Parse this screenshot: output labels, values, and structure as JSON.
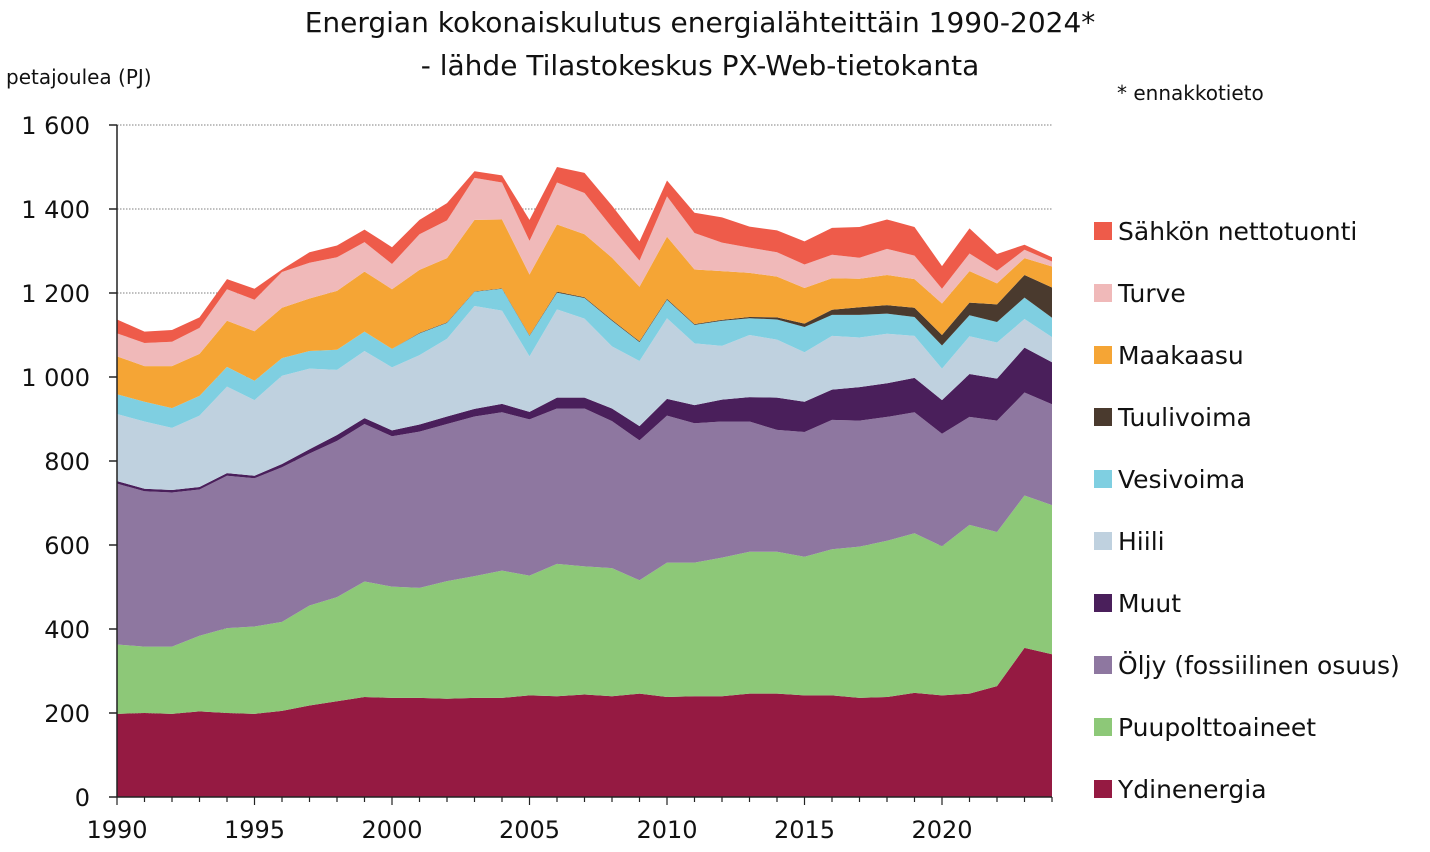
{
  "chart_data": {
    "type": "area",
    "stacked": true,
    "title": "Energian kokonaiskulutus energialähteittäin 1990-2024*",
    "subtitle": "- lähde Tilastokeskus PX-Web-tietokanta",
    "ylabel": "petajoulea (PJ)",
    "note": "* ennakkotieto",
    "xlabel": "",
    "ylim": [
      0,
      1600
    ],
    "yticks": [
      0,
      200,
      400,
      600,
      800,
      1000,
      1200,
      1400,
      1600
    ],
    "ytick_labels": [
      "0",
      "200",
      "400",
      "600",
      "800",
      "1 000",
      "1 200",
      "1 400",
      "1 600"
    ],
    "xlim": [
      1990,
      2024
    ],
    "xticks": [
      1990,
      1995,
      2000,
      2005,
      2010,
      2015,
      2020
    ],
    "xtick_labels": [
      "1990",
      "1995",
      "2000",
      "2005",
      "2010",
      "2015",
      "2020"
    ],
    "grid": "horizontal",
    "legend": "right",
    "x": [
      1990,
      1991,
      1992,
      1993,
      1994,
      1995,
      1996,
      1997,
      1998,
      1999,
      2000,
      2001,
      2002,
      2003,
      2004,
      2005,
      2006,
      2007,
      2008,
      2009,
      2010,
      2011,
      2012,
      2013,
      2014,
      2015,
      2016,
      2017,
      2018,
      2019,
      2020,
      2021,
      2022,
      2023,
      2024
    ],
    "series": [
      {
        "name": "Ydinenergia",
        "color": "#951a42",
        "values": [
          198,
          200,
          198,
          204,
          200,
          198,
          205,
          218,
          228,
          238,
          236,
          236,
          234,
          236,
          236,
          242,
          240,
          244,
          240,
          246,
          238,
          240,
          240,
          246,
          246,
          242,
          242,
          236,
          238,
          248,
          242,
          246,
          264,
          355,
          340
        ]
      },
      {
        "name": "Puupolttoaineet",
        "color": "#8dc878",
        "values": [
          165,
          158,
          160,
          180,
          202,
          208,
          212,
          238,
          248,
          275,
          265,
          262,
          280,
          290,
          303,
          285,
          315,
          305,
          305,
          270,
          320,
          318,
          330,
          338,
          338,
          330,
          348,
          360,
          372,
          380,
          355,
          402,
          367,
          363,
          355
        ]
      },
      {
        "name": "Öljy (fossiilinen osuus)",
        "color": "#8e77a0",
        "values": [
          383,
          370,
          367,
          348,
          363,
          353,
          368,
          362,
          372,
          375,
          358,
          372,
          374,
          380,
          377,
          372,
          370,
          376,
          350,
          333,
          350,
          332,
          324,
          310,
          290,
          297,
          308,
          300,
          295,
          288,
          268,
          257,
          265,
          245,
          240
        ]
      },
      {
        "name": "Muut",
        "color": "#4a1f5b",
        "values": [
          6,
          6,
          6,
          6,
          6,
          6,
          8,
          10,
          14,
          14,
          14,
          17,
          18,
          18,
          20,
          18,
          26,
          26,
          30,
          34,
          40,
          43,
          52,
          58,
          77,
          72,
          72,
          80,
          80,
          82,
          80,
          102,
          100,
          107,
          100
        ]
      },
      {
        "name": "Hiili",
        "color": "#bfd1df",
        "values": [
          160,
          160,
          148,
          170,
          206,
          180,
          210,
          192,
          155,
          160,
          150,
          165,
          185,
          245,
          222,
          132,
          210,
          188,
          148,
          155,
          192,
          147,
          128,
          148,
          138,
          118,
          128,
          118,
          118,
          100,
          75,
          90,
          86,
          68,
          60
        ]
      },
      {
        "name": "Vesivoima",
        "color": "#7fcfe1",
        "values": [
          47,
          47,
          47,
          47,
          47,
          46,
          42,
          42,
          48,
          46,
          44,
          52,
          38,
          34,
          52,
          49,
          40,
          49,
          61,
          45,
          44,
          44,
          60,
          40,
          48,
          60,
          50,
          54,
          48,
          45,
          55,
          50,
          49,
          51,
          46
        ]
      },
      {
        "name": "Tuulivoima",
        "color": "#4a3a2e",
        "values": [
          0,
          0,
          0,
          0,
          0,
          0,
          0,
          0,
          0,
          0,
          0,
          1,
          1,
          1,
          1,
          1,
          2,
          2,
          2,
          2,
          2,
          2,
          2,
          3,
          5,
          8,
          12,
          18,
          20,
          22,
          25,
          30,
          42,
          54,
          72
        ]
      },
      {
        "name": "Maakaasu",
        "color": "#f5a535",
        "values": [
          90,
          85,
          100,
          100,
          110,
          118,
          120,
          125,
          140,
          143,
          142,
          150,
          153,
          170,
          164,
          145,
          160,
          150,
          148,
          130,
          148,
          130,
          116,
          105,
          97,
          85,
          75,
          68,
          72,
          68,
          75,
          75,
          50,
          40,
          50
        ]
      },
      {
        "name": "Turve",
        "color": "#f0b9b9",
        "values": [
          55,
          55,
          58,
          62,
          75,
          75,
          85,
          85,
          80,
          70,
          60,
          85,
          90,
          100,
          88,
          80,
          100,
          98,
          72,
          62,
          96,
          87,
          68,
          60,
          58,
          56,
          56,
          50,
          62,
          56,
          35,
          42,
          30,
          20,
          12
        ]
      },
      {
        "name": "Sähkön nettotuonti",
        "color": "#ee5b4a",
        "values": [
          33,
          27,
          28,
          25,
          24,
          26,
          6,
          25,
          28,
          30,
          40,
          34,
          41,
          16,
          17,
          50,
          37,
          48,
          52,
          46,
          38,
          48,
          60,
          50,
          52,
          55,
          64,
          73,
          70,
          68,
          54,
          60,
          40,
          12,
          10
        ]
      }
    ]
  }
}
